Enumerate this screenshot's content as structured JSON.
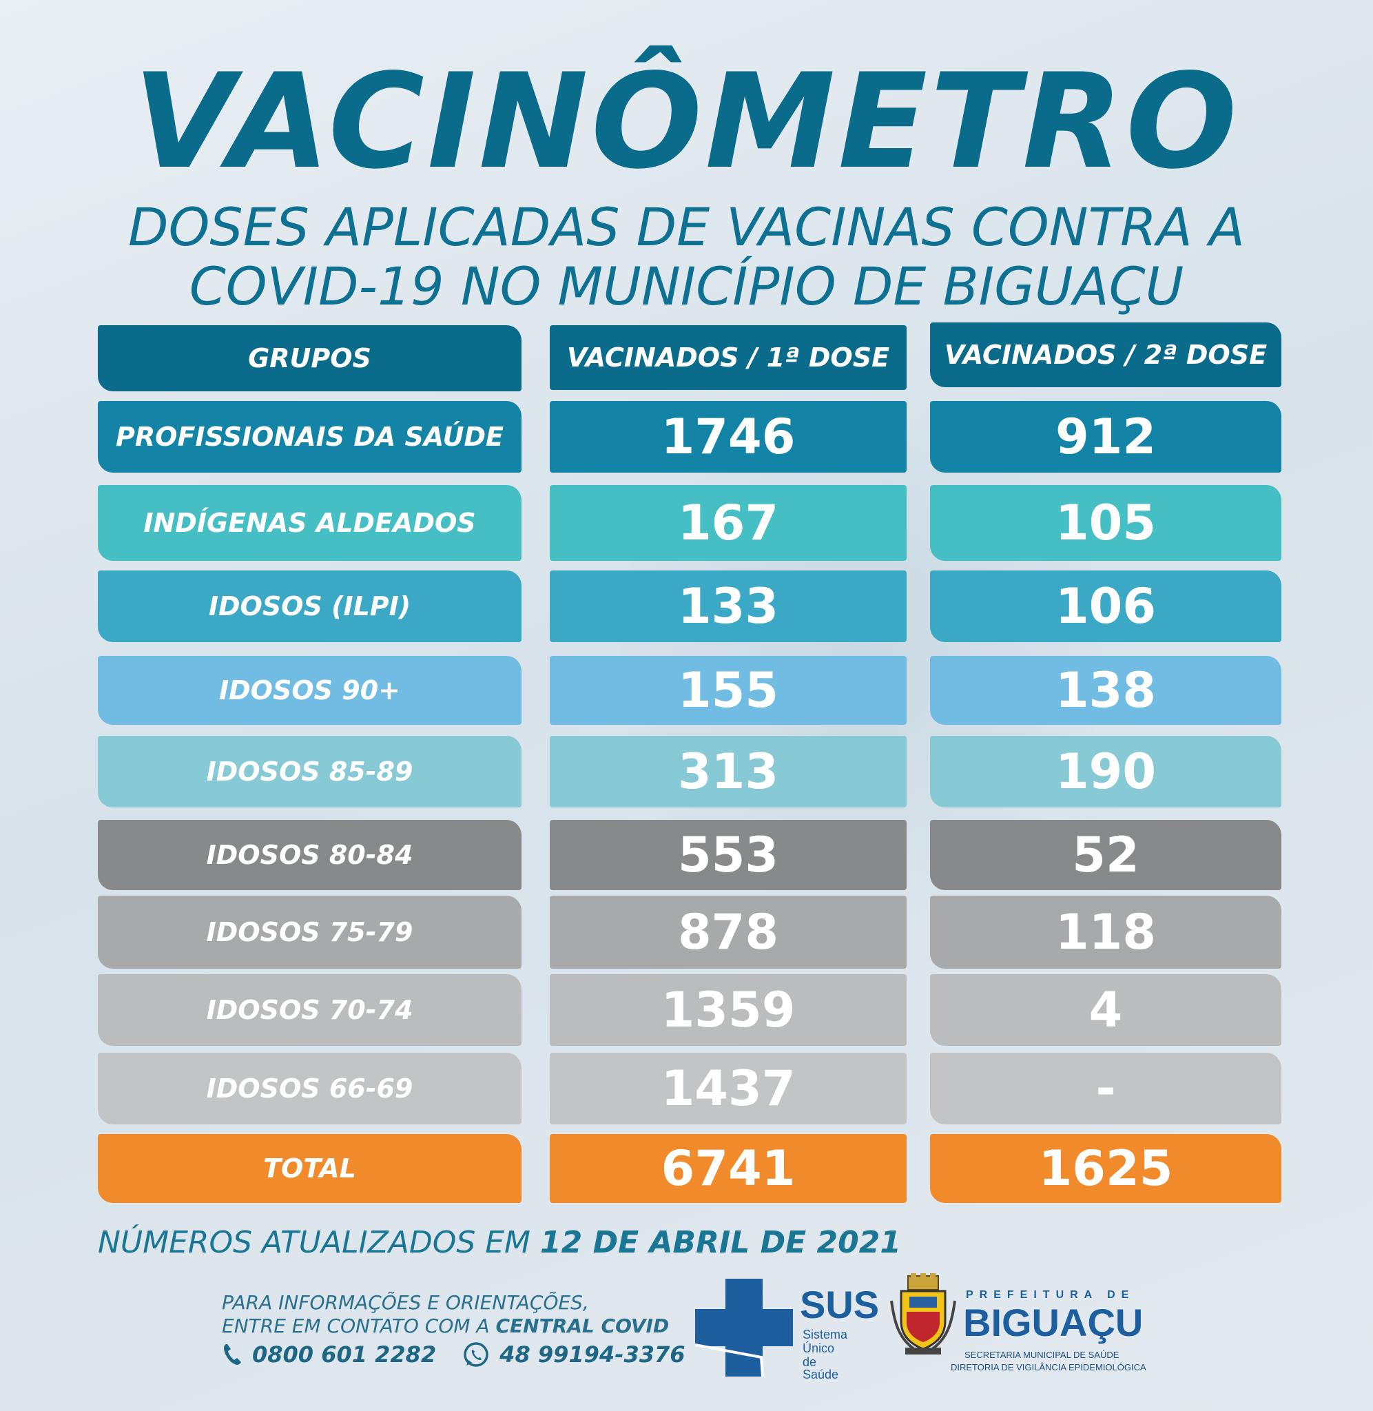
{
  "header": {
    "title": "VACINÔMETRO",
    "subtitle_line1": "DOSES APLICADAS DE VACINAS CONTRA A",
    "subtitle_line2": "COVID-19 NO MUNICÍPIO DE BIGUAÇU"
  },
  "table": {
    "columns": [
      "GRUPOS",
      "VACINADOS / 1ª DOSE",
      "VACINADOS / 2ª DOSE"
    ],
    "rows": [
      {
        "group": "PROFISSIONAIS DA SAÚDE",
        "dose1": "1746",
        "dose2": "912",
        "color": "#1384a6"
      },
      {
        "group": "INDÍGENAS  ALDEADOS",
        "dose1": "167",
        "dose2": "105",
        "color": "#45bfc3"
      },
      {
        "group": "IDOSOS (ILPI)",
        "dose1": "133",
        "dose2": "106",
        "color": "#3ba9c5"
      },
      {
        "group": "IDOSOS 90+",
        "dose1": "155",
        "dose2": "138",
        "color": "#71bce3"
      },
      {
        "group": "IDOSOS 85-89",
        "dose1": "313",
        "dose2": "190",
        "color": "#87cad6"
      },
      {
        "group": "IDOSOS 80-84",
        "dose1": "553",
        "dose2": "52",
        "color": "#88898b"
      },
      {
        "group": "IDOSOS 75-79",
        "dose1": "878",
        "dose2": "118",
        "color": "#a8a9ab"
      },
      {
        "group": "IDOSOS 70-74",
        "dose1": "1359",
        "dose2": "4",
        "color": "#bbbcbe"
      },
      {
        "group": "IDOSOS 66-69",
        "dose1": "1437",
        "dose2": "-",
        "color": "#c3c4c6"
      }
    ],
    "total": {
      "label": "TOTAL",
      "dose1": "6741",
      "dose2": "1625",
      "color": "#f08a2a"
    },
    "header_color": "#0a6b8a"
  },
  "updated": {
    "prefix": "NÚMEROS ATUALIZADOS EM",
    "date": "12 DE ABRIL DE 2021"
  },
  "contact": {
    "line1": "PARA INFORMAÇÕES E ORIENTAÇÕES,",
    "line2_prefix": "ENTRE EM CONTATO COM A",
    "line2_highlight": "CENTRAL COVID",
    "phone": "0800 601 2282",
    "whatsapp": "48 99194-3376"
  },
  "sus_logo": {
    "acronym": "SUS",
    "line1": "Sistema",
    "line2": "Único",
    "line3": "de Saúde"
  },
  "prefeitura_logo": {
    "top": "PREFEITURA DE",
    "city": "BIGUAÇU",
    "line1": "SECRETARIA MUNICIPAL DE SAÚDE",
    "line2": "DIRETORIA DE VIGILÂNCIA EPIDEMIOLÓGICA"
  }
}
